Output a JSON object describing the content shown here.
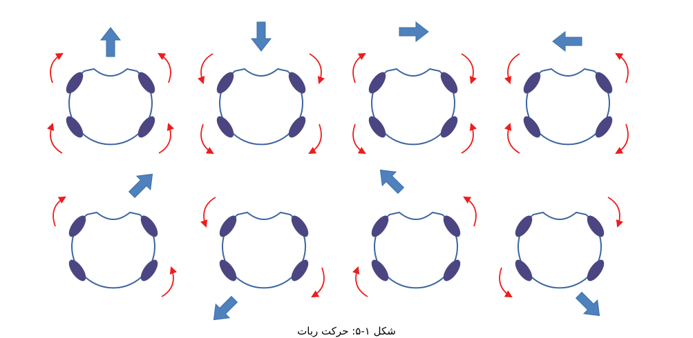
{
  "caption": "شکل ۱-۵: حرکت ربات",
  "colors": {
    "body_outline": "#3c64a0",
    "wheel": "#4b4682",
    "motion_arrow": "#4f81bd",
    "rotation_arrow": "#ee1c1c"
  },
  "cells": [
    {
      "name": "forward",
      "direction": "up",
      "wheel_rotations": [
        "left-up",
        "left-up",
        "right-up",
        "right-up"
      ]
    },
    {
      "name": "backward",
      "direction": "down",
      "wheel_rotations": [
        "left-down",
        "left-down",
        "right-down",
        "right-down"
      ]
    },
    {
      "name": "right",
      "direction": "right",
      "wheel_rotations": [
        "up",
        "down",
        "down",
        "up"
      ]
    },
    {
      "name": "left",
      "direction": "left",
      "wheel_rotations": [
        "down",
        "up",
        "up",
        "down"
      ]
    },
    {
      "name": "diagonal-up-right",
      "direction": "up-right",
      "wheel_rotations": [
        "up",
        "",
        "",
        "up"
      ]
    },
    {
      "name": "diagonal-down-left",
      "direction": "down-left",
      "wheel_rotations": [
        "down",
        "",
        "",
        "down"
      ]
    },
    {
      "name": "diagonal-up-left",
      "direction": "up-left",
      "wheel_rotations": [
        "",
        "up",
        "up",
        ""
      ]
    },
    {
      "name": "diagonal-down-right",
      "direction": "down-right",
      "wheel_rotations": [
        "",
        "down",
        "down",
        ""
      ]
    }
  ]
}
